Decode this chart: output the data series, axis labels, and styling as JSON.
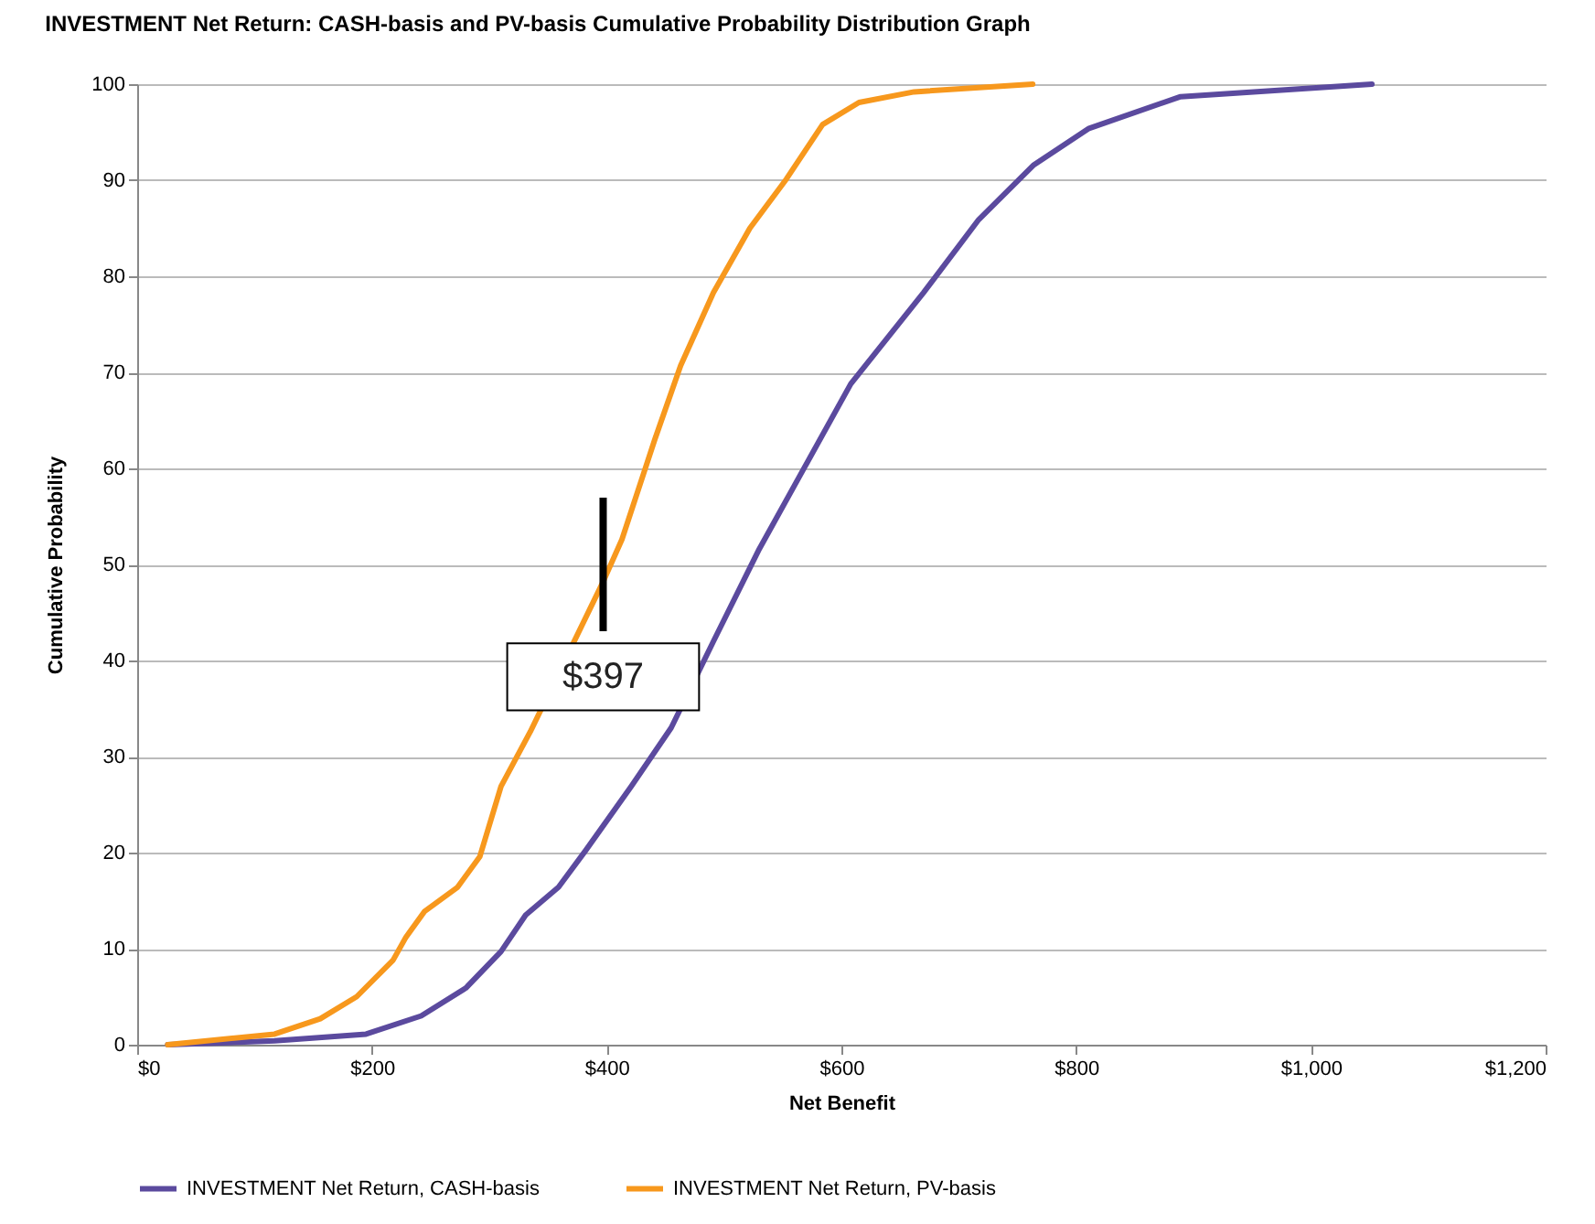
{
  "chart_data": {
    "type": "line",
    "title": "INVESTMENT Net Return: CASH-basis and PV-basis Cumulative Probability Distribution Graph",
    "xlabel": "Net Benefit",
    "ylabel": "Cumulative Probability",
    "xlim": [
      0,
      1200
    ],
    "xticks": [
      {
        "value": 0,
        "label": "$0"
      },
      {
        "value": 200,
        "label": "$200"
      },
      {
        "value": 400,
        "label": "$400"
      },
      {
        "value": 600,
        "label": "$600"
      },
      {
        "value": 800,
        "label": "$800"
      },
      {
        "value": 1000,
        "label": "$1,000"
      },
      {
        "value": 1200,
        "label": "$1,200"
      }
    ],
    "ylim": [
      0,
      100
    ],
    "yticks": [
      0,
      10,
      20,
      30,
      40,
      50,
      60,
      70,
      80,
      90,
      100
    ],
    "grid": "y",
    "legend": "bottom",
    "marker": "none",
    "line_style": "solid",
    "annotations": [
      {
        "text": "$397",
        "x": 397,
        "y": 48.2
      }
    ],
    "series": [
      {
        "name": "INVESTMENT Net Return, CASH-basis",
        "color": "#5b4a9e",
        "x": [
          26,
          117,
          195,
          242,
          280,
          310,
          331,
          359,
          382,
          421,
          455,
          491,
          530,
          569,
          608,
          670,
          717,
          764,
          811,
          889,
          1052
        ],
        "values": [
          0,
          0.4,
          1.1,
          3,
          5.9,
          9.7,
          13.5,
          16.4,
          20.2,
          26.9,
          33,
          42,
          51.6,
          60.2,
          68.8,
          78.3,
          85.9,
          91.6,
          95.4,
          98.7,
          100
        ]
      },
      {
        "name": "INVESTMENT Net Return, PV-basis",
        "color": "#f7981d",
        "x": [
          26,
          117,
          156,
          187,
          218,
          229,
          245,
          273,
          292,
          310,
          335,
          397,
          413,
          441,
          463,
          491,
          522,
          553,
          584,
          615,
          662,
          763
        ],
        "values": [
          0,
          1.1,
          2.7,
          5,
          8.8,
          11.2,
          13.9,
          16.4,
          19.6,
          26.9,
          32.6,
          48.2,
          52.6,
          63,
          70.7,
          78.3,
          85,
          90.1,
          95.8,
          98.1,
          99.2,
          100
        ]
      }
    ]
  }
}
